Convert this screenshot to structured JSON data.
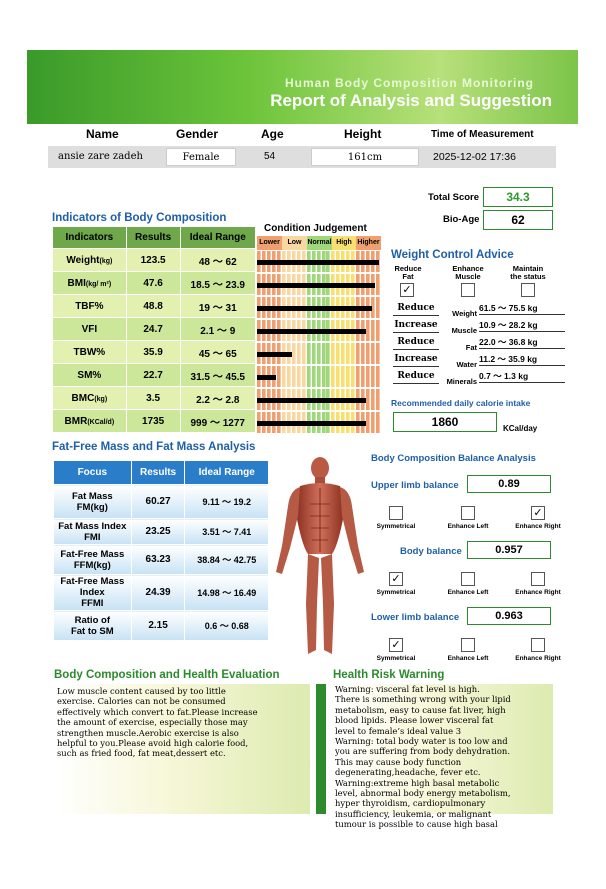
{
  "banner": {
    "line1": "Human Body Composition Monitoring",
    "line2": "Report of Analysis and Suggestion"
  },
  "info": {
    "headers": [
      "Name",
      "Gender",
      "Age",
      "Height",
      "Time of Measurement"
    ],
    "name": "ansie zare zadeh",
    "gender": "Female",
    "age": "54",
    "height": "161cm",
    "time": "2025-12-02   17:36"
  },
  "score": {
    "total_label": "Total Score",
    "total": "34.3",
    "bioage_label": "Bio-Age",
    "bioage": "62"
  },
  "indicators": {
    "title": "Indicators of Body Composition",
    "cond_title": "Condition Judgement",
    "cols": [
      "Indicators",
      "Results",
      "Ideal Range"
    ],
    "levels": [
      "Lower",
      "Low",
      "Normal",
      "High",
      "Higher"
    ],
    "rows": [
      {
        "name": "Weight",
        "unit": "(kg)",
        "result": "123.5",
        "range": "48 ～ 62",
        "level": 0.98
      },
      {
        "name": "BMI",
        "unit": "(kg/ m²)",
        "result": "47.6",
        "range": "18.5 ～ 23.9",
        "level": 0.95
      },
      {
        "name": "TBF%",
        "unit": "",
        "result": "48.8",
        "range": "19 ～ 31",
        "level": 0.93
      },
      {
        "name": "VFI",
        "unit": "",
        "result": "24.7",
        "range": "2.1 ～ 9",
        "level": 0.88
      },
      {
        "name": "TBW%",
        "unit": "",
        "result": "35.9",
        "range": "45 ～ 65",
        "level": 0.28
      },
      {
        "name": "SM%",
        "unit": "",
        "result": "22.7",
        "range": "31.5 ～ 45.5",
        "level": 0.15
      },
      {
        "name": "BMC",
        "unit": "(kg)",
        "result": "3.5",
        "range": "2.2 ～ 2.8",
        "level": 0.88
      },
      {
        "name": "BMR",
        "unit": "(KCal/d)",
        "result": "1735",
        "range": "999 ～ 1277",
        "level": 0.88
      }
    ]
  },
  "weight_control": {
    "title": "Weight Control Advice",
    "options": [
      "Reduce\nFat",
      "Enhance\nMuscle",
      "Maintain\nthe status"
    ],
    "checked": [
      true,
      false,
      false
    ],
    "rows": [
      {
        "action": "Reduce",
        "label": "Weight",
        "value": "61.5 ～ 75.5 kg"
      },
      {
        "action": "Increase",
        "label": "Muscle",
        "value": "10.9 ～ 28.2 kg"
      },
      {
        "action": "Reduce",
        "label": "Fat",
        "value": "22.0 ～ 36.8 kg"
      },
      {
        "action": "Increase",
        "label": "Water",
        "value": "11.2 ～ 35.9 kg"
      },
      {
        "action": "Reduce",
        "label": "Minerals",
        "value": "0.7 ～ 1.3 kg"
      }
    ],
    "calorie_title": "Recommended daily calorie intake",
    "calorie": "1860",
    "calorie_unit": "KCal/day"
  },
  "ffm": {
    "title": "Fat-Free Mass and Fat Mass Analysis",
    "cols": [
      "Focus",
      "Results",
      "Ideal Range"
    ],
    "rows": [
      {
        "focus": "Fat Mass\nFM(kg)",
        "result": "60.27",
        "range": "9.11 ～ 19.2"
      },
      {
        "focus": "Fat Mass Index\nFMI",
        "result": "23.25",
        "range": "3.51 ～ 7.41"
      },
      {
        "focus": "Fat-Free Mass\nFFM(kg)",
        "result": "63.23",
        "range": "38.84 ～ 42.75"
      },
      {
        "focus": "Fat-Free Mass\nIndex\nFFMI",
        "result": "24.39",
        "range": "14.98 ～ 16.49"
      },
      {
        "focus": "Ratio of\nFat to SM",
        "result": "2.15",
        "range": "0.6 ～ 0.68"
      }
    ]
  },
  "balance": {
    "title": "Body Composition Balance Analysis",
    "options": [
      "Symmetrical",
      "Enhance Left",
      "Enhance Right"
    ],
    "items": [
      {
        "label": "Upper limb balance",
        "value": "0.89",
        "checked": [
          false,
          false,
          true
        ]
      },
      {
        "label": "Body balance",
        "value": "0.957",
        "checked": [
          true,
          false,
          false
        ]
      },
      {
        "label": "Lower limb balance",
        "value": "0.963",
        "checked": [
          true,
          false,
          false
        ]
      }
    ]
  },
  "evaluation": {
    "title": "Body Composition and Health Evaluation",
    "lines": [
      "Low muscle content caused by too little",
      "exercise. Calories can not be consumed",
      "effectively which convert to fat.Please increase",
      "the amount of exercise, especially those may",
      "strengthen muscle.Aerobic exercise is also",
      "helpful to you.Please avoid high calorie food,",
      "such as fried food, fat meat,dessert etc."
    ]
  },
  "risk": {
    "title": "Health Risk Warning",
    "lines": [
      "Warning: visceral fat level is high.",
      "There is something wrong with your lipid",
      "metabolism, easy to cause fat liver, high",
      "blood lipids. Please lower visceral fat",
      "level to female’s ideal value 3",
      "Warning: total body water is too low and",
      "you are suffering from body dehydration.",
      "This may cause body function",
      "degenerating,headache, fever etc.",
      "Warning:extreme high basal metabolic",
      "level, abnormal body energy metabolism,",
      "hyper thyroidism, cardiopulmonary",
      "insufficiency, leukemia, or malignant",
      "tumour is possible to cause high basal"
    ]
  },
  "colors": {
    "accent_blue": "#1f5fa8",
    "accent_green": "#2d8a2d",
    "level_lower": "#f0a070",
    "level_low": "#f8d8a0",
    "level_normal": "#9fd87a",
    "level_high": "#f8e070",
    "level_higher": "#f0a070"
  }
}
